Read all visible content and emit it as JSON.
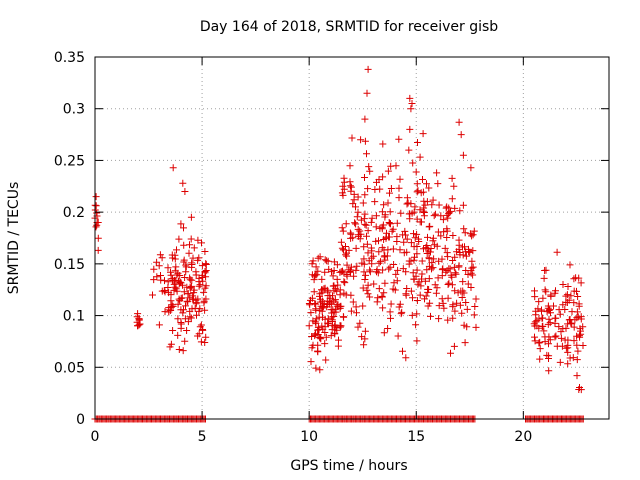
{
  "chart_data": {
    "type": "scatter",
    "title": "Day 164 of 2018, SRMTID for receiver gisb",
    "xlabel": "GPS time / hours",
    "ylabel": "SRMTID / TECUs",
    "xlim": [
      0,
      24
    ],
    "ylim": [
      0,
      0.35
    ],
    "grid": true,
    "marker": "+",
    "color": "#dd0000",
    "x_ticks": [
      0,
      5,
      10,
      15,
      20
    ],
    "x_tick_labels": [
      "0",
      "5",
      "10",
      "15",
      "20"
    ],
    "y_ticks": [
      0,
      0.05,
      0.1,
      0.15,
      0.2,
      0.25,
      0.3,
      0.35
    ],
    "y_tick_labels": [
      "0",
      "0.05",
      "0.1",
      "0.15",
      "0.2",
      "0.25",
      "0.3",
      "0.35"
    ],
    "series": [
      {
        "name": "SRMTID",
        "clusters": [
          {
            "x_range": [
              0.0,
              0.2
            ],
            "y_range": [
              0.16,
              0.22
            ],
            "count": 10,
            "outliers": [
              {
                "x": 0.05,
                "y": 0.215
              },
              {
                "x": 0.1,
                "y": 0.19
              },
              {
                "x": 0.15,
                "y": 0.163
              }
            ]
          },
          {
            "x_range": [
              1.9,
              2.1
            ],
            "y_range": [
              0.07,
              0.12
            ],
            "count": 10
          },
          {
            "x_range": [
              2.6,
              3.3
            ],
            "y_range": [
              0.08,
              0.19
            ],
            "count": 16
          },
          {
            "x_range": [
              3.4,
              5.2
            ],
            "y_range": [
              0.05,
              0.2
            ],
            "count": 150,
            "outliers": [
              {
                "x": 3.65,
                "y": 0.243
              },
              {
                "x": 4.1,
                "y": 0.228
              },
              {
                "x": 4.2,
                "y": 0.22
              },
              {
                "x": 4.5,
                "y": 0.195
              }
            ]
          },
          {
            "x_range": [
              10.0,
              11.5
            ],
            "y_range": [
              0.04,
              0.18
            ],
            "count": 140
          },
          {
            "x_range": [
              11.5,
              13.5
            ],
            "y_range": [
              0.04,
              0.3
            ],
            "count": 150,
            "outliers": [
              {
                "x": 12.75,
                "y": 0.338
              },
              {
                "x": 12.7,
                "y": 0.315
              },
              {
                "x": 12.6,
                "y": 0.29
              },
              {
                "x": 12.4,
                "y": 0.27
              }
            ]
          },
          {
            "x_range": [
              13.5,
              15.5
            ],
            "y_range": [
              0.04,
              0.3
            ],
            "count": 140,
            "outliers": [
              {
                "x": 14.7,
                "y": 0.31
              },
              {
                "x": 14.8,
                "y": 0.305
              },
              {
                "x": 14.75,
                "y": 0.3
              },
              {
                "x": 14.7,
                "y": 0.28
              },
              {
                "x": 14.65,
                "y": 0.26
              }
            ]
          },
          {
            "x_range": [
              15.5,
              17.8
            ],
            "y_range": [
              0.04,
              0.26
            ],
            "count": 150,
            "outliers": [
              {
                "x": 17.0,
                "y": 0.287
              },
              {
                "x": 17.1,
                "y": 0.275
              },
              {
                "x": 17.2,
                "y": 0.255
              }
            ]
          },
          {
            "x_range": [
              20.5,
              22.8
            ],
            "y_range": [
              0.02,
              0.17
            ],
            "count": 130
          }
        ],
        "zero_runs": [
          [
            0.0,
            5.2
          ],
          [
            10.0,
            17.8
          ],
          [
            20.1,
            22.8
          ]
        ]
      }
    ]
  }
}
